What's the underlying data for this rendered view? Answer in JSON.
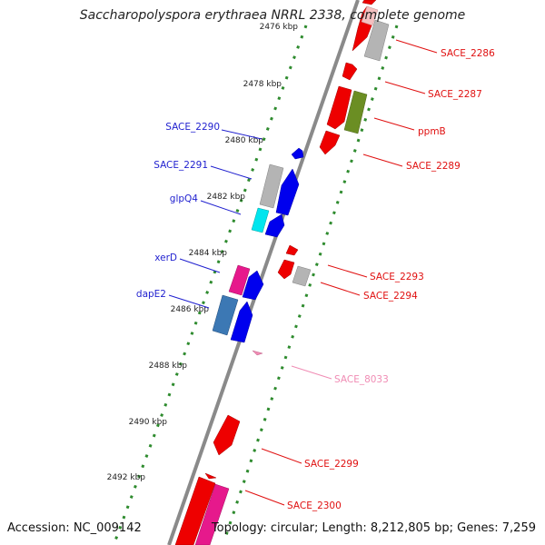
{
  "title": "Saccharopolyspora erythraea NRRL 2338, complete genome",
  "accession": "Accession: NC_009142",
  "topology": "Topology: circular; Length: 8,212,805 bp; Genes: 7,259",
  "colors": {
    "backbone": "#8a8a8a",
    "ticks": "#2e8b2e",
    "label_blue": "#1f1fcf",
    "label_red": "#e01010",
    "label_pink": "#f08cb4"
  },
  "scale_labels": [
    "2476 kbp",
    "2478 kbp",
    "2480 kbp",
    "2482 kbp",
    "2484 kbp",
    "2486 kbp",
    "2488 kbp",
    "2490 kbp",
    "2492 kbp"
  ],
  "gene_labels_left": [
    "SACE_2290",
    "SACE_2291",
    "glpQ4",
    "xerD",
    "dapE2"
  ],
  "gene_labels_right": [
    "SACE_2286",
    "SACE_2287",
    "ppmB",
    "SACE_2289",
    "SACE_2293",
    "SACE_2294",
    "SACE_8033",
    "SACE_2299",
    "SACE_2300"
  ]
}
